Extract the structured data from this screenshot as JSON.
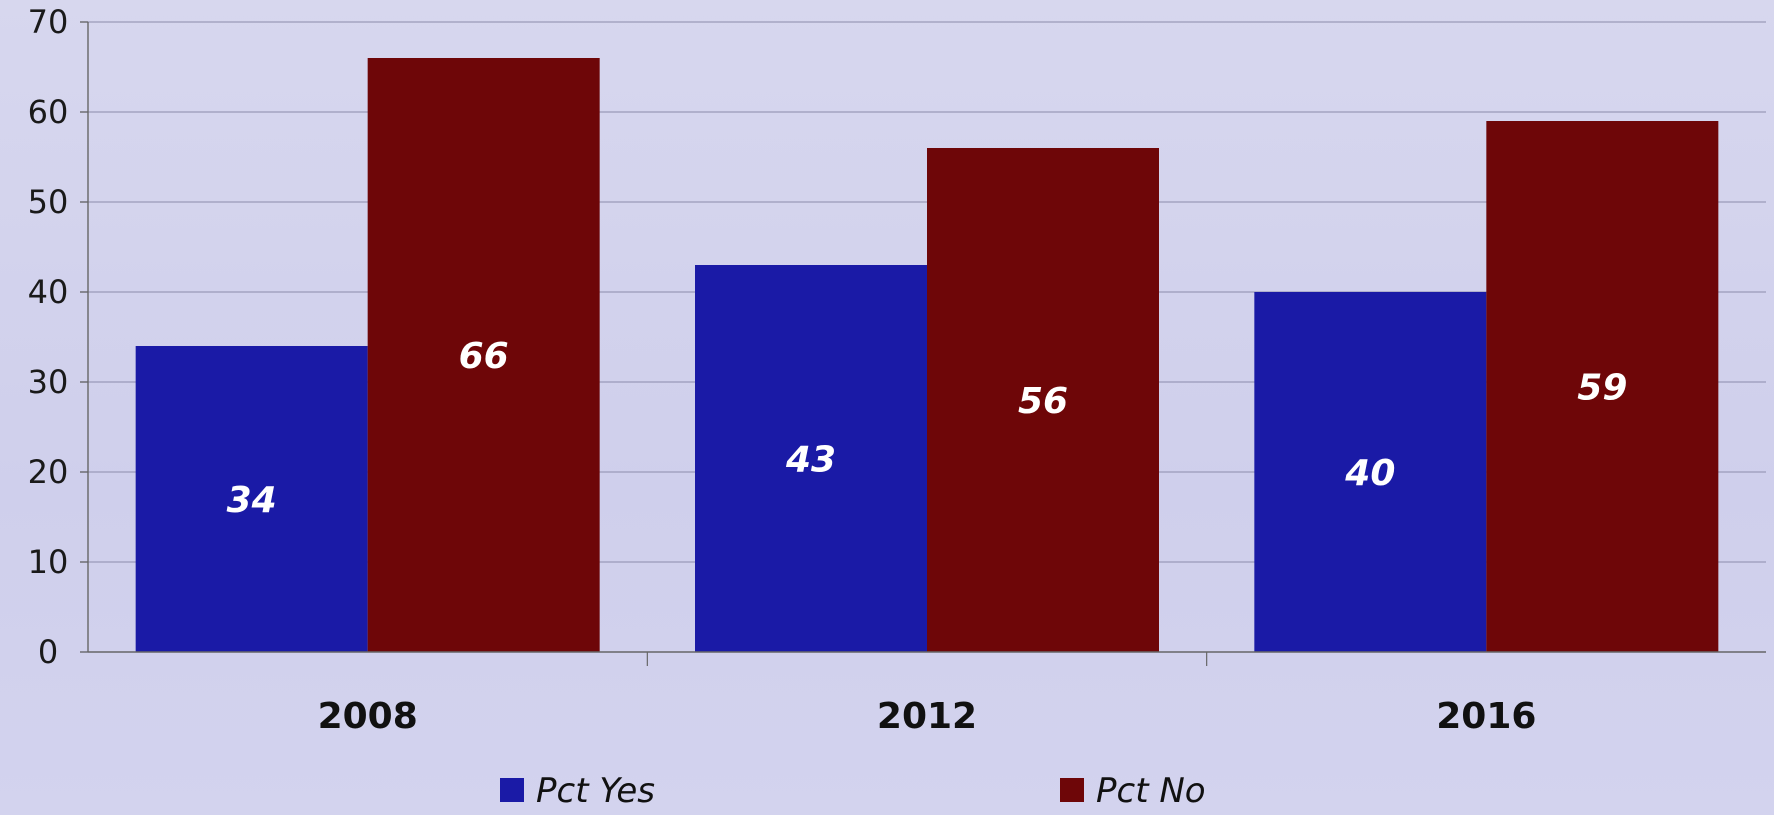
{
  "chart_data": {
    "type": "bar",
    "title": "",
    "xlabel": "",
    "ylabel": "",
    "categories": [
      "2008",
      "2012",
      "2016"
    ],
    "series": [
      {
        "name": "Pct Yes",
        "values": [
          34,
          43,
          40
        ],
        "color": "#1a1aa6"
      },
      {
        "name": "Pct No",
        "values": [
          66,
          56,
          59
        ],
        "color": "#6e0608"
      }
    ],
    "ylim": [
      0,
      70
    ],
    "yticks": [
      0,
      10,
      20,
      30,
      40,
      50,
      60,
      70
    ],
    "grid": true,
    "legend_position": "bottom"
  }
}
